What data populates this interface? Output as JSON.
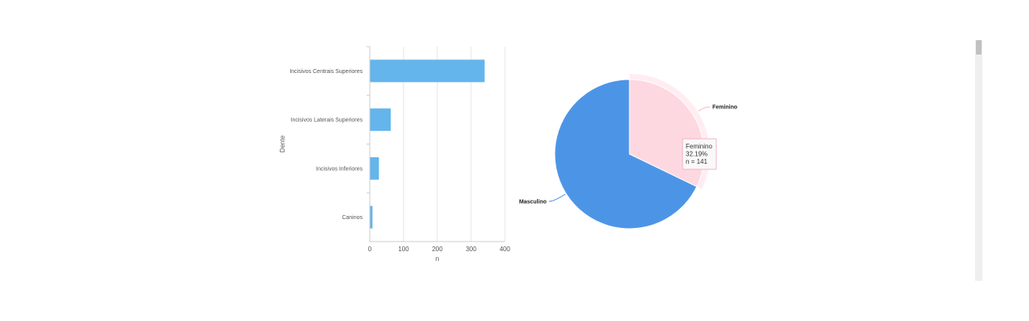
{
  "chart_data": [
    {
      "type": "bar",
      "orientation": "horizontal",
      "categories": [
        "Incisivos Centrais Superiores",
        "Incisivos Laterais Superiores",
        "Incisivos Inferiores",
        "Caninos"
      ],
      "values": [
        340,
        62,
        27,
        8
      ],
      "xlabel": "n",
      "ylabel": "Dente",
      "xlim": [
        0,
        400
      ],
      "xticks": [
        0,
        100,
        200,
        300,
        400
      ],
      "grid": true,
      "color": "#64b5eb"
    },
    {
      "type": "pie",
      "slices": [
        {
          "label": "Feminino",
          "percent": 32.19,
          "n": 141,
          "color": "#fed8e1"
        },
        {
          "label": "Masculino",
          "percent": 67.81,
          "color": "#4c95e6"
        }
      ],
      "tooltip": {
        "label": "Feminino",
        "percent_text": "32.19%",
        "n_text": "n = 141"
      }
    }
  ],
  "colors": {
    "scrollbar_track": "#efefef",
    "scrollbar_thumb": "#c1c1c1"
  }
}
